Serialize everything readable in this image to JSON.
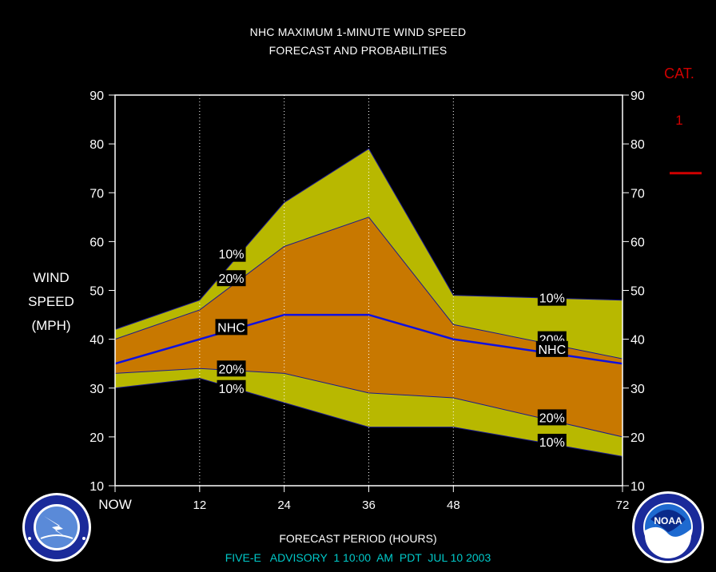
{
  "chart_data": {
    "type": "area",
    "title": "NHC MAXIMUM 1-MINUTE WIND SPEED",
    "subtitle": "FORECAST AND PROBABILITIES",
    "ylabel": [
      "WIND",
      "SPEED",
      "(MPH)"
    ],
    "xlabel": "FORECAST PERIOD (HOURS)",
    "footer": "FIVE-E   ADVISORY  1 10:00  AM  PDT  JUL 10 2003",
    "xlim": [
      0,
      72
    ],
    "ylim": [
      10,
      90
    ],
    "x_ticks": [
      {
        "value": 0,
        "label": "NOW"
      },
      {
        "value": 12,
        "label": "12"
      },
      {
        "value": 24,
        "label": "24"
      },
      {
        "value": 36,
        "label": "36"
      },
      {
        "value": 48,
        "label": "48"
      },
      {
        "value": 72,
        "label": "72"
      }
    ],
    "y_ticks": [
      10,
      20,
      30,
      40,
      50,
      60,
      70,
      80,
      90
    ],
    "grid_x": [
      12,
      24,
      36,
      48
    ],
    "x": [
      0,
      12,
      24,
      36,
      48,
      72
    ],
    "series": [
      {
        "name": "10%",
        "band": "upper",
        "values": [
          42,
          48,
          68,
          79,
          49,
          48
        ]
      },
      {
        "name": "20%",
        "band": "upper",
        "values": [
          40,
          46,
          59,
          65,
          43,
          36
        ]
      },
      {
        "name": "NHC",
        "values": [
          35,
          40,
          45,
          45,
          40,
          35
        ]
      },
      {
        "name": "20%",
        "band": "lower",
        "values": [
          33,
          34,
          33,
          29,
          28,
          20
        ]
      },
      {
        "name": "10%",
        "band": "lower",
        "values": [
          30,
          32,
          27,
          22,
          22,
          16
        ]
      }
    ],
    "labels": [
      {
        "text": "10%",
        "x": 16.5,
        "y": 57.5
      },
      {
        "text": "20%",
        "x": 16.5,
        "y": 52.5
      },
      {
        "text": "NHC",
        "x": 16.5,
        "y": 42.5
      },
      {
        "text": "20%",
        "x": 16.5,
        "y": 34.0
      },
      {
        "text": "10%",
        "x": 16.5,
        "y": 30.0
      },
      {
        "text": "10%",
        "x": 62.0,
        "y": 48.5
      },
      {
        "text": "20%",
        "x": 62.0,
        "y": 40.0
      },
      {
        "text": "NHC",
        "x": 62.0,
        "y": 38.0
      },
      {
        "text": "20%",
        "x": 62.0,
        "y": 24.0
      },
      {
        "text": "10%",
        "x": 62.0,
        "y": 19.0
      }
    ],
    "category_scale": {
      "header": "CAT.",
      "category": "1",
      "threshold_mph": 74
    },
    "colors": {
      "outer_band": "#b8b800",
      "inner_band": "#c87800",
      "nhc_line": "#1010e0",
      "band_edge": "#1a1a90",
      "category": "#d00000",
      "footer": "#00c8c8"
    },
    "logos": {
      "left": "nws-logo",
      "right": "noaa-logo"
    }
  }
}
